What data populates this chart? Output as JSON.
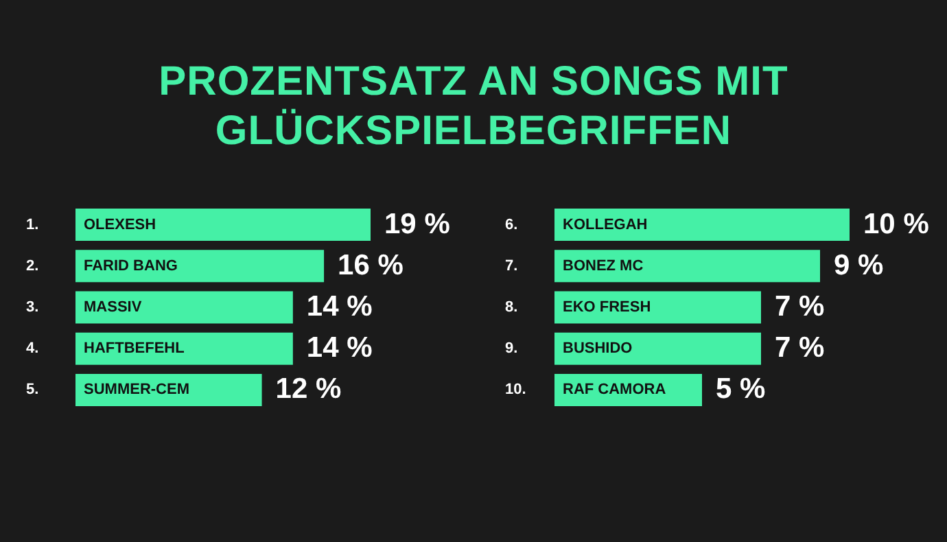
{
  "chart_data": [
    {
      "type": "bar",
      "orientation": "horizontal",
      "title": "PROZENTSATZ AN SONGS MIT GLÜCKSPIELBEGRIFFEN",
      "categories": [
        "OLEXESH",
        "FARID BANG",
        "MASSIV",
        "HAFTBEFEHL",
        "SUMMER-CEM"
      ],
      "values": [
        19,
        16,
        14,
        14,
        12
      ],
      "value_labels": [
        "19 %",
        "16 %",
        "14 %",
        "14 %",
        "12 %"
      ],
      "annotations": [
        "1.",
        "2.",
        "3.",
        "4.",
        "5."
      ],
      "color": "#45f0a6"
    },
    {
      "type": "bar",
      "orientation": "horizontal",
      "categories": [
        "KOLLEGAH",
        "BONEZ MC",
        "EKO FRESH",
        "BUSHIDO",
        "RAF CAMORA"
      ],
      "values": [
        10,
        9,
        7,
        7,
        5
      ],
      "value_labels": [
        "10 %",
        "9 %",
        "7 %",
        "7 %",
        "5 %"
      ],
      "annotations": [
        "6.",
        "7.",
        "8.",
        "9.",
        "10."
      ],
      "color": "#45f0a6"
    }
  ]
}
